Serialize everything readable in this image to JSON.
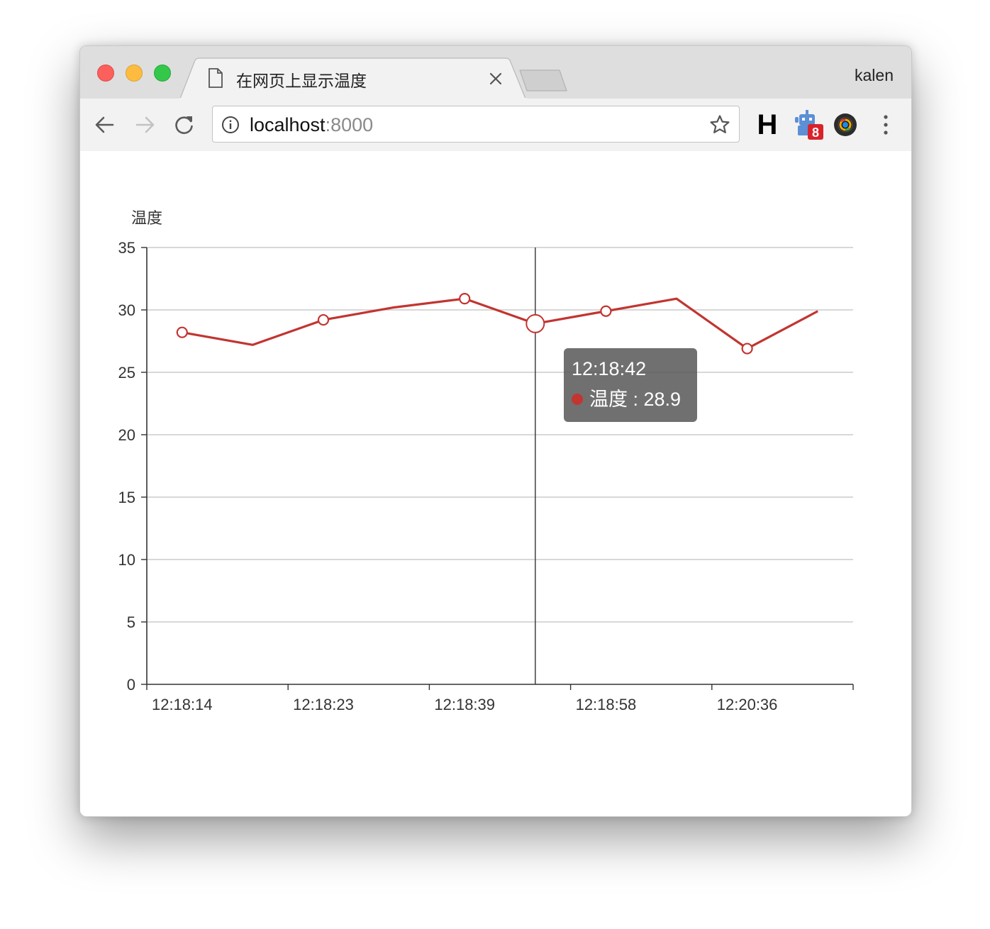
{
  "window": {
    "profile_name": "kalen",
    "tab": {
      "title": "在网页上显示温度",
      "icon": "document-icon"
    }
  },
  "toolbar": {
    "url_host": "localhost",
    "url_port": ":8000",
    "extensions": [
      {
        "name": "h-extension-icon",
        "label": "H"
      },
      {
        "name": "robot-extension-icon",
        "badge": "8"
      },
      {
        "name": "camera-extension-icon"
      }
    ]
  },
  "chart_data": {
    "type": "line",
    "title": "",
    "ylabel": "温度",
    "xlabel": "",
    "ylim": [
      0,
      35
    ],
    "yticks": [
      0,
      5,
      10,
      15,
      20,
      25,
      30,
      35
    ],
    "x": [
      "12:18:14",
      "",
      "12:18:23",
      "",
      "12:18:39",
      "12:18:42",
      "12:18:58",
      "",
      "12:20:36",
      ""
    ],
    "tick_labels_shown": [
      "12:18:14",
      "12:18:23",
      "12:18:39",
      "12:18:58",
      "12:20:36"
    ],
    "series": [
      {
        "name": "温度",
        "color": "#c23531",
        "values": [
          28.2,
          27.2,
          29.2,
          30.2,
          30.9,
          28.9,
          29.9,
          30.9,
          26.9,
          29.9
        ],
        "markers": [
          true,
          false,
          true,
          false,
          true,
          true,
          true,
          false,
          true,
          false
        ]
      }
    ],
    "grid": true,
    "highlight_index": 5,
    "tooltip": {
      "time": "12:18:42",
      "series_name": "温度",
      "separator": " : ",
      "value": "28.9"
    }
  }
}
